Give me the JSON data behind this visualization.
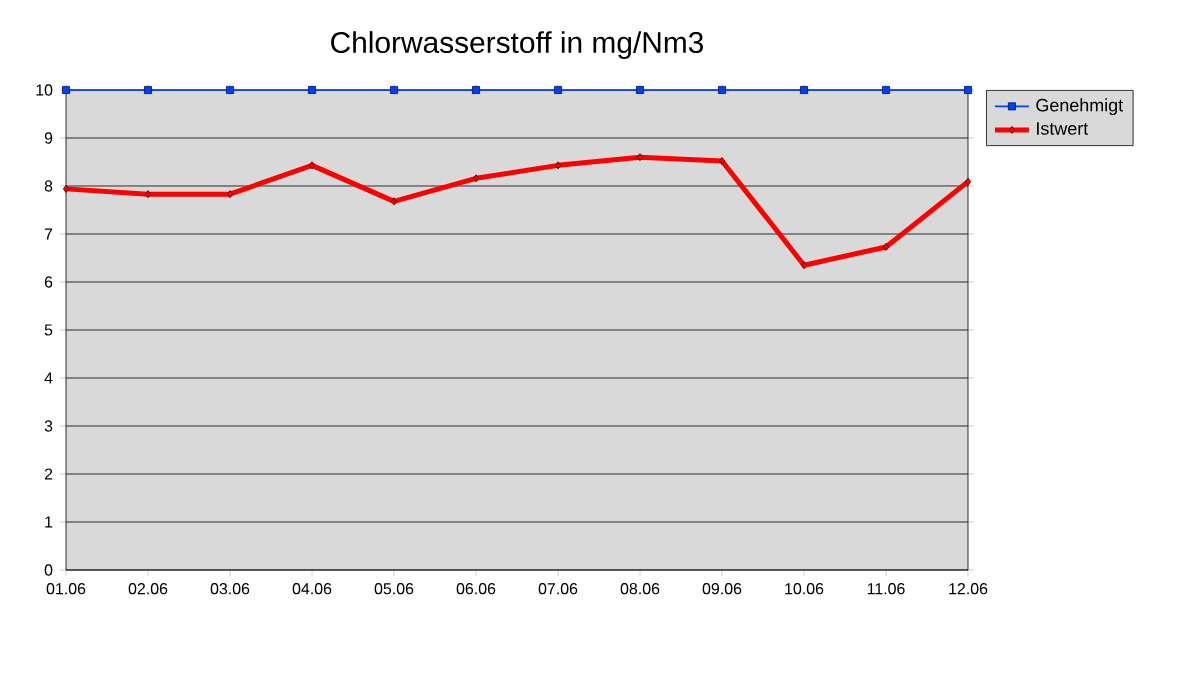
{
  "chart_data": {
    "type": "line",
    "title": "Chlorwasserstoff in mg/Nm3",
    "categories": [
      "01.06",
      "02.06",
      "03.06",
      "04.06",
      "05.06",
      "06.06",
      "07.06",
      "08.06",
      "09.06",
      "10.06",
      "11.06",
      "12.06"
    ],
    "series": [
      {
        "name": "Genehmigt",
        "color": "#0040ff",
        "marker": "square",
        "values": [
          10,
          10,
          10,
          10,
          10,
          10,
          10,
          10,
          10,
          10,
          10,
          10
        ]
      },
      {
        "name": "Istwert",
        "color": "#ff0000",
        "marker": "diamond",
        "values": [
          7.94,
          7.83,
          7.83,
          8.43,
          7.68,
          8.16,
          8.43,
          8.6,
          8.52,
          6.35,
          6.73,
          8.09
        ]
      }
    ],
    "ylim": [
      0,
      10
    ],
    "yticks": [
      0,
      1,
      2,
      3,
      4,
      5,
      6,
      7,
      8,
      9,
      10
    ],
    "grid": "y",
    "legend": "top right",
    "line_style": "solid"
  }
}
